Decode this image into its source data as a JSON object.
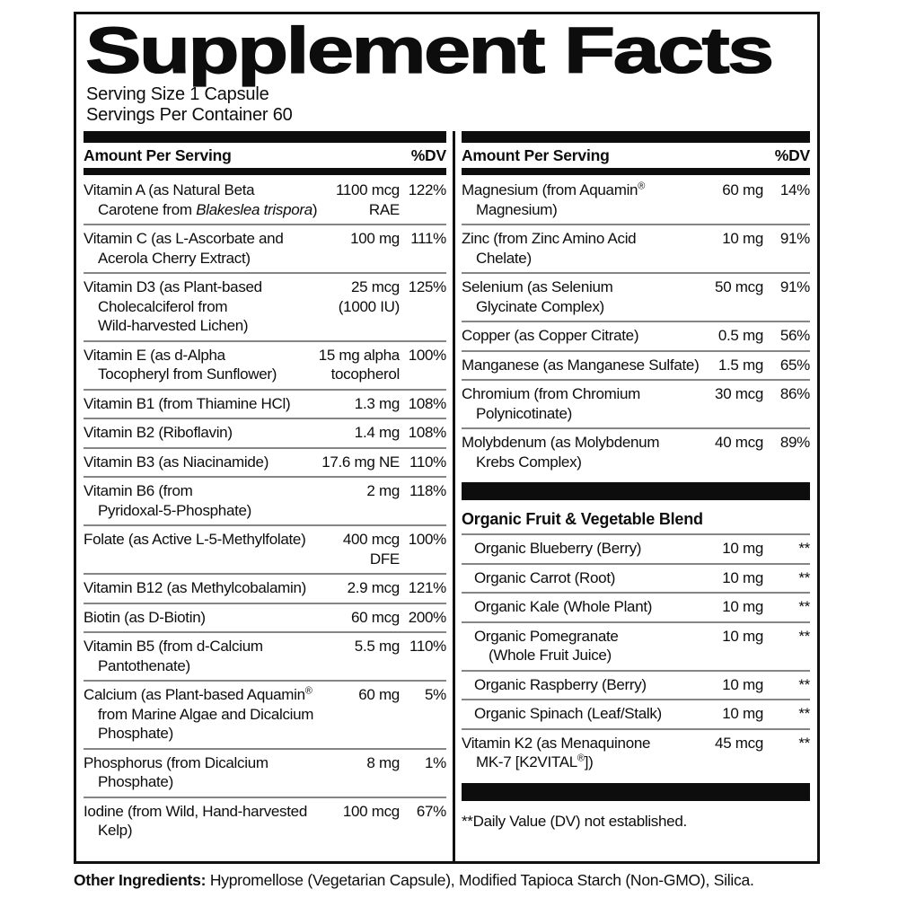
{
  "title": "Supplement Facts",
  "serving": {
    "size": "Serving Size 1 Capsule",
    "per_container": "Servings Per Container 60"
  },
  "header": {
    "amount_label": "Amount Per Serving",
    "dv_label": "%DV"
  },
  "colors": {
    "text": "#0d0d0d",
    "bar": "#0d0d0d",
    "separator": "#858585",
    "background": "#ffffff"
  },
  "left": {
    "rows": [
      {
        "name": "Vitamin A (as Natural Beta\nCarotene from *Blakeslea trispora*)",
        "amount": "1100 mcg\nRAE",
        "dv": "122%"
      },
      {
        "name": "Vitamin C (as L-Ascorbate and\nAcerola Cherry Extract)",
        "amount": "100 mg",
        "dv": "111%"
      },
      {
        "name": "Vitamin D3 (as Plant-based\nCholecalciferol from\nWild-harvested Lichen)",
        "amount": "25 mcg\n(1000 IU)",
        "dv": "125%"
      },
      {
        "name": "Vitamin E (as d-Alpha\nTocopheryl from Sunflower)",
        "amount": "15 mg alpha\ntocopherol",
        "dv": "100%"
      },
      {
        "name": "Vitamin B1 (from Thiamine HCl)",
        "amount": "1.3 mg",
        "dv": "108%"
      },
      {
        "name": "Vitamin B2 (Riboflavin)",
        "amount": "1.4 mg",
        "dv": "108%"
      },
      {
        "name": "Vitamin B3 (as Niacinamide)",
        "amount": "17.6 mg NE",
        "dv": "110%"
      },
      {
        "name": "Vitamin B6 (from\nPyridoxal-5-Phosphate)",
        "amount": "2 mg",
        "dv": "118%"
      },
      {
        "name": "Folate (as Active L-5-Methylfolate)",
        "amount": "400 mcg\nDFE",
        "dv": "100%"
      },
      {
        "name": "Vitamin B12 (as Methylcobalamin)",
        "amount": "2.9 mcg",
        "dv": "121%"
      },
      {
        "name": "Biotin (as D-Biotin)",
        "amount": "60 mcg",
        "dv": "200%"
      },
      {
        "name": "Vitamin B5 (from d-Calcium\nPantothenate)",
        "amount": "5.5 mg",
        "dv": "110%"
      },
      {
        "name": "Calcium (as Plant-based Aquamin®\nfrom Marine Algae and Dicalcium\nPhosphate)",
        "amount": "60 mg",
        "dv": "5%"
      },
      {
        "name": "Phosphorus (from Dicalcium\nPhosphate)",
        "amount": "8 mg",
        "dv": "1%"
      },
      {
        "name": "Iodine (from Wild, Hand-harvested\nKelp)",
        "amount": "100 mcg",
        "dv": "67%"
      }
    ]
  },
  "right": {
    "rows": [
      {
        "name": "Magnesium (from Aquamin®\nMagnesium)",
        "amount": "60 mg",
        "dv": "14%"
      },
      {
        "name": "Zinc (from Zinc Amino Acid\nChelate)",
        "amount": "10 mg",
        "dv": "91%"
      },
      {
        "name": "Selenium (as Selenium\nGlycinate Complex)",
        "amount": "50 mcg",
        "dv": "91%"
      },
      {
        "name": "Copper (as Copper Citrate)",
        "amount": "0.5 mg",
        "dv": "56%"
      },
      {
        "name": "Manganese (as Manganese Sulfate)",
        "amount": "1.5 mg",
        "dv": "65%"
      },
      {
        "name": "Chromium (from Chromium\nPolynicotinate)",
        "amount": "30 mcg",
        "dv": "86%"
      },
      {
        "name": "Molybdenum (as Molybdenum\nKrebs Complex)",
        "amount": "40 mcg",
        "dv": "89%"
      }
    ],
    "blend": {
      "title": "Organic Fruit & Vegetable Blend",
      "rows": [
        {
          "name": "Organic Blueberry (Berry)",
          "amount": "10 mg",
          "dv": "**",
          "indent": true
        },
        {
          "name": "Organic Carrot (Root)",
          "amount": "10 mg",
          "dv": "**",
          "indent": true
        },
        {
          "name": "Organic Kale (Whole Plant)",
          "amount": "10 mg",
          "dv": "**",
          "indent": true
        },
        {
          "name": "Organic Pomegranate\n(Whole Fruit Juice)",
          "amount": "10 mg",
          "dv": "**",
          "indent": true
        },
        {
          "name": "Organic Raspberry (Berry)",
          "amount": "10 mg",
          "dv": "**",
          "indent": true
        },
        {
          "name": "Organic Spinach (Leaf/Stalk)",
          "amount": "10 mg",
          "dv": "**",
          "indent": true
        }
      ]
    },
    "extra_rows": [
      {
        "name": "Vitamin K2 (as Menaquinone\nMK-7 [K2VITAL®])",
        "amount": "45 mcg",
        "dv": "**"
      }
    ],
    "footnote": "**Daily Value (DV) not established."
  },
  "other_ingredients": {
    "label": "Other Ingredients:",
    "text": "Hypromellose (Vegetarian Capsule), Modified Tapioca Starch (Non-GMO), Silica."
  }
}
